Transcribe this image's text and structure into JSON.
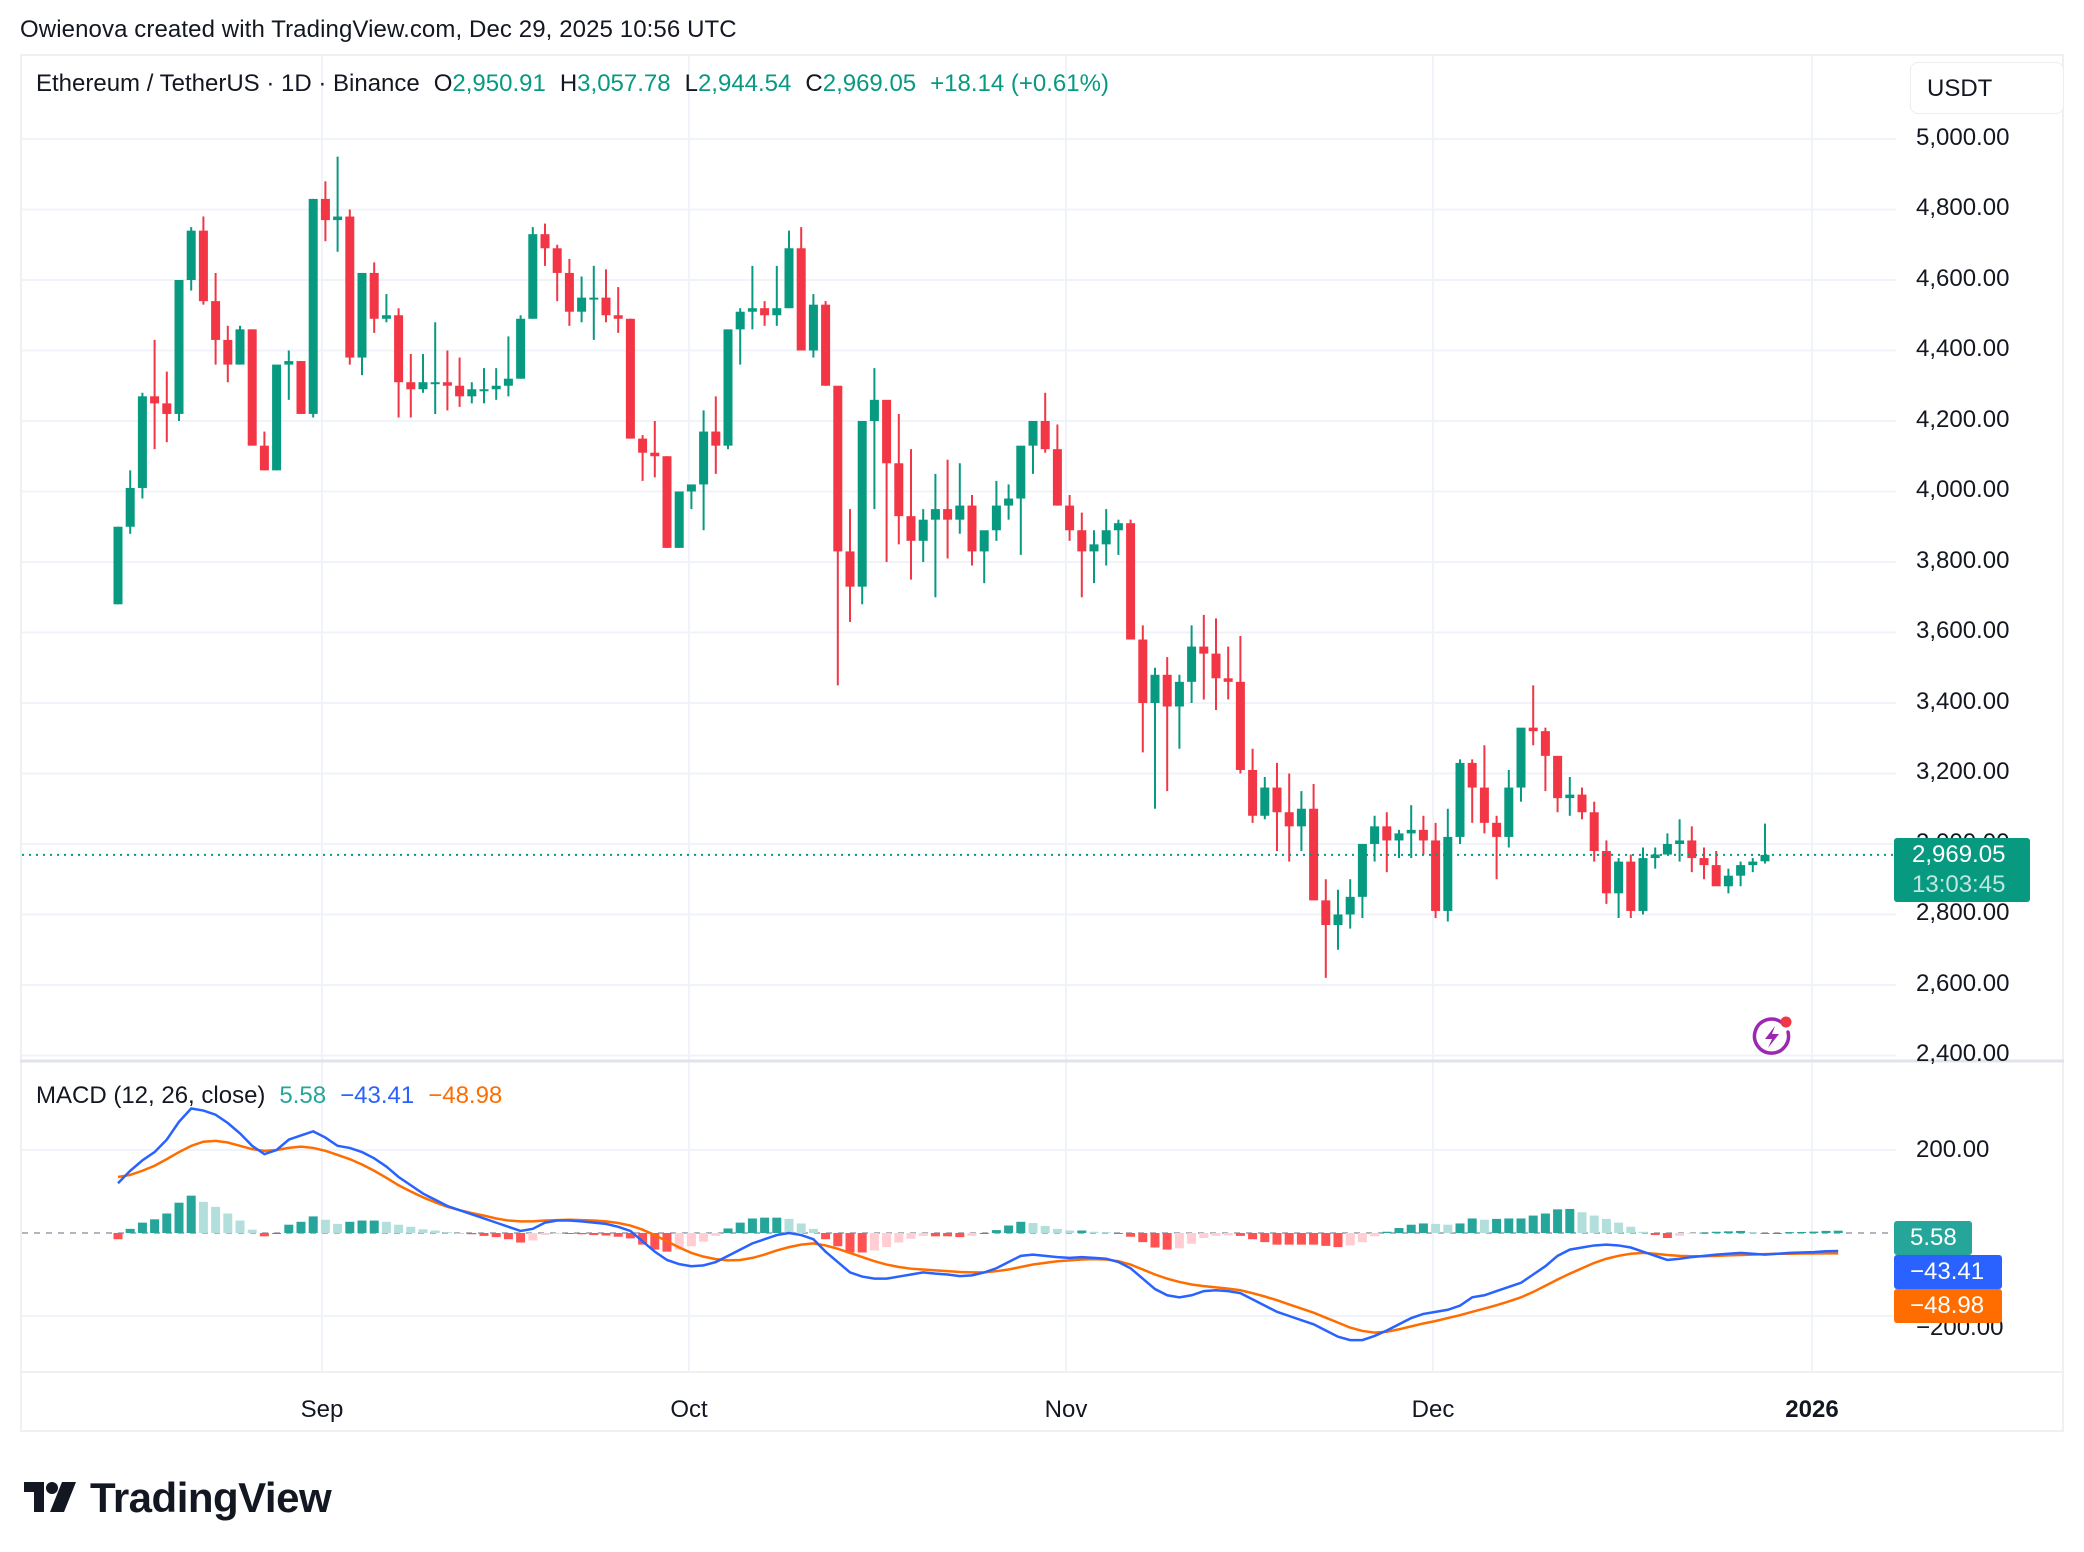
{
  "header": {
    "credit": "Owienova created with TradingView.com, Dec 29, 2025 10:56 UTC"
  },
  "legend": {
    "symbol": "Ethereum / TetherUS · 1D · Binance",
    "open_label": "O",
    "open": "2,950.91",
    "high_label": "H",
    "high": "3,057.78",
    "low_label": "L",
    "low": "2,944.54",
    "close_label": "C",
    "close": "2,969.05",
    "change": "+18.14 (+0.61%)"
  },
  "currency_button": "USDT",
  "price_axis": {
    "ticks": [
      "5,000.00",
      "4,800.00",
      "4,600.00",
      "4,400.00",
      "4,200.00",
      "4,000.00",
      "3,800.00",
      "3,600.00",
      "3,400.00",
      "3,200.00",
      "3,000.00",
      "2,800.00",
      "2,600.00",
      "2,400.00"
    ],
    "current_price": "2,969.05",
    "countdown": "13:03:45"
  },
  "macd": {
    "title": "MACD (12, 26, close)",
    "histogram_value": "5.58",
    "macd_value": "−43.41",
    "signal_value": "−48.98",
    "axis_ticks": [
      "200.00",
      "−200.00"
    ]
  },
  "time_axis": {
    "labels": [
      "Sep",
      "Oct",
      "Nov",
      "Dec",
      "2026"
    ]
  },
  "branding": {
    "logo_text": "TradingView"
  },
  "colors": {
    "up": "#089981",
    "down": "#f23645",
    "macd_line": "#2962ff",
    "signal_line": "#ff6d00",
    "hist_up_strong": "#26a69a",
    "hist_up_weak": "#b2dfdb",
    "hist_down_strong": "#ff5252",
    "hist_down_weak": "#ffcdd2",
    "grid": "#f0f3fa"
  },
  "chart_data": {
    "type": "candlestick",
    "title": "Ethereum / TetherUS · 1D · Binance",
    "xlabel": "",
    "ylabel": "USDT",
    "ylim": [
      2400,
      5000
    ],
    "x_tick_labels": [
      "Sep",
      "Oct",
      "Nov",
      "Dec",
      "2026"
    ],
    "y_tick_labels": [
      "5,000.00",
      "4,800.00",
      "4,600.00",
      "4,400.00",
      "4,200.00",
      "4,000.00",
      "3,800.00",
      "3,600.00",
      "3,400.00",
      "3,200.00",
      "3,000.00",
      "2,800.00",
      "2,600.00",
      "2,400.00"
    ],
    "grid": true,
    "last": {
      "open": 2950.91,
      "high": 3057.78,
      "low": 2944.54,
      "close": 2969.05,
      "change": 18.14,
      "change_pct": 0.61
    },
    "ohlc": [
      [
        3680,
        3900,
        3680,
        3900
      ],
      [
        3900,
        4060,
        3880,
        4010
      ],
      [
        4010,
        4280,
        3980,
        4270
      ],
      [
        4270,
        4430,
        4120,
        4250
      ],
      [
        4250,
        4340,
        4140,
        4220
      ],
      [
        4220,
        4600,
        4200,
        4600
      ],
      [
        4600,
        4750,
        4570,
        4740
      ],
      [
        4740,
        4780,
        4530,
        4540
      ],
      [
        4540,
        4620,
        4360,
        4430
      ],
      [
        4430,
        4470,
        4310,
        4360
      ],
      [
        4360,
        4470,
        4360,
        4460
      ],
      [
        4460,
        4460,
        4130,
        4130
      ],
      [
        4130,
        4170,
        4060,
        4060
      ],
      [
        4060,
        4140,
        4060,
        4360
      ],
      [
        4360,
        4400,
        4260,
        4370
      ],
      [
        4370,
        4370,
        4220,
        4220
      ],
      [
        4220,
        4830,
        4210,
        4830
      ],
      [
        4830,
        4880,
        4710,
        4770
      ],
      [
        4770,
        4950,
        4680,
        4780
      ],
      [
        4780,
        4800,
        4360,
        4380
      ],
      [
        4380,
        4620,
        4330,
        4620
      ],
      [
        4620,
        4650,
        4450,
        4490
      ],
      [
        4490,
        4560,
        4480,
        4500
      ],
      [
        4500,
        4520,
        4210,
        4310
      ],
      [
        4310,
        4390,
        4210,
        4290
      ],
      [
        4290,
        4390,
        4280,
        4310
      ],
      [
        4310,
        4480,
        4220,
        4310
      ],
      [
        4310,
        4400,
        4230,
        4300
      ],
      [
        4300,
        4380,
        4240,
        4270
      ],
      [
        4270,
        4310,
        4250,
        4290
      ],
      [
        4290,
        4350,
        4250,
        4290
      ],
      [
        4290,
        4350,
        4260,
        4300
      ],
      [
        4300,
        4440,
        4270,
        4320
      ],
      [
        4320,
        4500,
        4320,
        4490
      ],
      [
        4490,
        4750,
        4490,
        4730
      ],
      [
        4730,
        4760,
        4640,
        4690
      ],
      [
        4690,
        4700,
        4540,
        4620
      ],
      [
        4620,
        4660,
        4470,
        4510
      ],
      [
        4510,
        4610,
        4480,
        4550
      ],
      [
        4550,
        4640,
        4430,
        4550
      ],
      [
        4550,
        4630,
        4480,
        4500
      ],
      [
        4500,
        4580,
        4450,
        4490
      ],
      [
        4490,
        4490,
        4150,
        4150
      ],
      [
        4150,
        4160,
        4030,
        4110
      ],
      [
        4110,
        4200,
        4040,
        4100
      ],
      [
        4100,
        4100,
        3840,
        3840
      ],
      [
        3840,
        4000,
        3840,
        4000
      ],
      [
        4000,
        4010,
        3950,
        4020
      ],
      [
        4020,
        4230,
        3890,
        4170
      ],
      [
        4170,
        4270,
        4050,
        4130
      ],
      [
        4130,
        4220,
        4120,
        4460
      ],
      [
        4460,
        4520,
        4360,
        4510
      ],
      [
        4510,
        4640,
        4460,
        4520
      ],
      [
        4520,
        4540,
        4470,
        4500
      ],
      [
        4500,
        4640,
        4470,
        4520
      ],
      [
        4520,
        4740,
        4520,
        4690
      ],
      [
        4690,
        4750,
        4400,
        4400
      ],
      [
        4400,
        4560,
        4380,
        4530
      ],
      [
        4530,
        4540,
        4300,
        4300
      ],
      [
        4300,
        4290,
        3450,
        3830
      ],
      [
        3830,
        3950,
        3630,
        3730
      ],
      [
        3730,
        4030,
        3680,
        4200
      ],
      [
        4200,
        4350,
        3950,
        4260
      ],
      [
        4260,
        4240,
        3800,
        4080
      ],
      [
        4080,
        4220,
        3850,
        3930
      ],
      [
        3930,
        4120,
        3750,
        3860
      ],
      [
        3860,
        3950,
        3800,
        3920
      ],
      [
        3920,
        4050,
        3700,
        3950
      ],
      [
        3950,
        4090,
        3810,
        3920
      ],
      [
        3920,
        4080,
        3880,
        3960
      ],
      [
        3960,
        3990,
        3790,
        3830
      ],
      [
        3830,
        3840,
        3740,
        3890
      ],
      [
        3890,
        4030,
        3860,
        3960
      ],
      [
        3960,
        4020,
        3920,
        3980
      ],
      [
        3980,
        4070,
        3820,
        4130
      ],
      [
        4130,
        4200,
        4050,
        4200
      ],
      [
        4200,
        4280,
        4110,
        4120
      ],
      [
        4120,
        4190,
        3960,
        3960
      ],
      [
        3960,
        3990,
        3860,
        3890
      ],
      [
        3890,
        3940,
        3700,
        3830
      ],
      [
        3830,
        3890,
        3740,
        3850
      ],
      [
        3850,
        3950,
        3790,
        3890
      ],
      [
        3890,
        3920,
        3820,
        3910
      ],
      [
        3910,
        3920,
        3580,
        3580
      ],
      [
        3580,
        3620,
        3260,
        3400
      ],
      [
        3400,
        3500,
        3100,
        3480
      ],
      [
        3480,
        3530,
        3150,
        3390
      ],
      [
        3390,
        3480,
        3270,
        3460
      ],
      [
        3460,
        3620,
        3400,
        3560
      ],
      [
        3560,
        3650,
        3410,
        3540
      ],
      [
        3540,
        3640,
        3380,
        3470
      ],
      [
        3470,
        3560,
        3410,
        3460
      ],
      [
        3460,
        3590,
        3200,
        3210
      ],
      [
        3210,
        3270,
        3060,
        3080
      ],
      [
        3080,
        3190,
        3070,
        3160
      ],
      [
        3160,
        3230,
        2980,
        3090
      ],
      [
        3090,
        3200,
        2950,
        3050
      ],
      [
        3050,
        3150,
        2980,
        3100
      ],
      [
        3100,
        3170,
        2860,
        2840
      ],
      [
        2840,
        2900,
        2620,
        2770
      ],
      [
        2770,
        2870,
        2700,
        2800
      ],
      [
        2800,
        2900,
        2760,
        2850
      ],
      [
        2850,
        2960,
        2790,
        3000
      ],
      [
        3000,
        3080,
        2950,
        3050
      ],
      [
        3050,
        3090,
        2920,
        3010
      ],
      [
        3010,
        3040,
        2960,
        3030
      ],
      [
        3030,
        3110,
        2960,
        3040
      ],
      [
        3040,
        3080,
        2970,
        3010
      ],
      [
        3010,
        3060,
        2790,
        2810
      ],
      [
        2810,
        3100,
        2780,
        3020
      ],
      [
        3020,
        3240,
        3000,
        3230
      ],
      [
        3230,
        3240,
        3060,
        3160
      ],
      [
        3160,
        3280,
        3030,
        3060
      ],
      [
        3060,
        3080,
        2900,
        3020
      ],
      [
        3020,
        3210,
        2990,
        3160
      ],
      [
        3160,
        3300,
        3120,
        3330
      ],
      [
        3330,
        3450,
        3280,
        3320
      ],
      [
        3320,
        3330,
        3150,
        3250
      ],
      [
        3250,
        3200,
        3090,
        3130
      ],
      [
        3130,
        3190,
        3080,
        3140
      ],
      [
        3140,
        3160,
        3070,
        3090
      ],
      [
        3090,
        3120,
        2950,
        2980
      ],
      [
        2980,
        3010,
        2830,
        2860
      ],
      [
        2860,
        2960,
        2790,
        2950
      ],
      [
        2950,
        2970,
        2790,
        2810
      ],
      [
        2810,
        2990,
        2800,
        2960
      ],
      [
        2960,
        2990,
        2930,
        2970
      ],
      [
        2970,
        3030,
        2980,
        3000
      ],
      [
        3000,
        3070,
        2950,
        3010
      ],
      [
        3010,
        3050,
        2920,
        2960
      ],
      [
        2960,
        2990,
        2900,
        2940
      ],
      [
        2940,
        2980,
        2890,
        2880
      ],
      [
        2880,
        2930,
        2860,
        2910
      ],
      [
        2910,
        2950,
        2880,
        2940
      ],
      [
        2940,
        2960,
        2920,
        2950
      ],
      [
        2950.91,
        3057.78,
        2944.54,
        2969.05
      ]
    ],
    "macd_series": {
      "ylim": [
        -340,
        320
      ],
      "macd": [
        120,
        150,
        175,
        195,
        225,
        268,
        300,
        295,
        285,
        265,
        240,
        210,
        190,
        200,
        225,
        235,
        245,
        230,
        210,
        205,
        195,
        180,
        160,
        135,
        115,
        95,
        80,
        65,
        55,
        45,
        35,
        25,
        15,
        5,
        10,
        25,
        30,
        30,
        28,
        25,
        22,
        15,
        5,
        -20,
        -45,
        -65,
        -75,
        -80,
        -78,
        -70,
        -55,
        -40,
        -25,
        -15,
        -5,
        0,
        -5,
        -15,
        -45,
        -70,
        -95,
        -105,
        -110,
        -110,
        -105,
        -100,
        -95,
        -98,
        -100,
        -104,
        -102,
        -95,
        -85,
        -70,
        -55,
        -52,
        -55,
        -58,
        -60,
        -58,
        -60,
        -62,
        -70,
        -85,
        -110,
        -135,
        -150,
        -155,
        -150,
        -140,
        -138,
        -140,
        -145,
        -160,
        -175,
        -190,
        -200,
        -210,
        -220,
        -235,
        -250,
        -258,
        -258,
        -248,
        -235,
        -220,
        -205,
        -195,
        -190,
        -185,
        -175,
        -155,
        -150,
        -140,
        -130,
        -120,
        -100,
        -80,
        -55,
        -40,
        -35,
        -30,
        -28,
        -30,
        -35,
        -45,
        -55,
        -65,
        -62,
        -58,
        -55,
        -52,
        -50,
        -48,
        -50,
        -52,
        -50,
        -48,
        -47,
        -46,
        -44,
        -43.41
      ],
      "signal": [
        135,
        140,
        150,
        162,
        178,
        195,
        210,
        220,
        222,
        218,
        210,
        202,
        198,
        200,
        205,
        208,
        205,
        198,
        188,
        178,
        165,
        150,
        133,
        115,
        100,
        86,
        74,
        63,
        55,
        48,
        42,
        35,
        30,
        28,
        28,
        30,
        31,
        32,
        31,
        30,
        28,
        24,
        18,
        8,
        -5,
        -20,
        -35,
        -48,
        -57,
        -63,
        -66,
        -65,
        -60,
        -52,
        -42,
        -34,
        -28,
        -25,
        -30,
        -38,
        -48,
        -58,
        -68,
        -76,
        -82,
        -86,
        -88,
        -90,
        -92,
        -94,
        -95,
        -95,
        -92,
        -88,
        -82,
        -76,
        -72,
        -68,
        -66,
        -64,
        -63,
        -64,
        -68,
        -76,
        -88,
        -100,
        -110,
        -118,
        -124,
        -128,
        -131,
        -134,
        -138,
        -145,
        -153,
        -162,
        -172,
        -182,
        -192,
        -204,
        -216,
        -228,
        -236,
        -240,
        -238,
        -232,
        -225,
        -218,
        -212,
        -205,
        -198,
        -190,
        -182,
        -174,
        -165,
        -155,
        -142,
        -127,
        -112,
        -98,
        -85,
        -72,
        -62,
        -55,
        -50,
        -48,
        -50,
        -53,
        -55,
        -56,
        -56,
        -55,
        -54,
        -53,
        -52,
        -51,
        -50,
        -50,
        -49.5,
        -49.3,
        -49.1,
        -48.98
      ],
      "histogram_last": 5.58
    }
  }
}
